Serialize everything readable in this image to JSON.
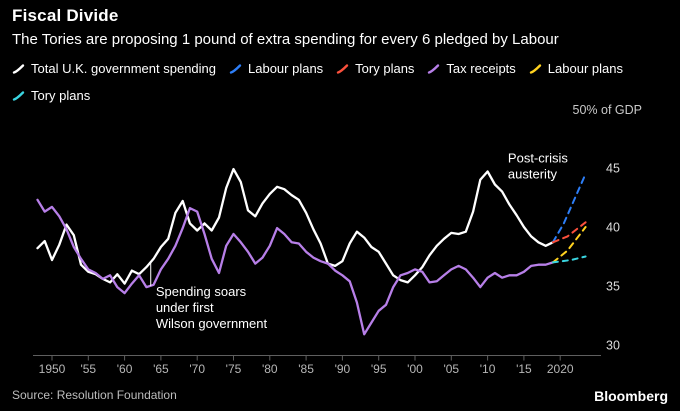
{
  "header": {
    "title": "Fiscal Divide",
    "subtitle": "The Tories are proposing 1 pound of extra spending for every 6 pledged by Labour"
  },
  "footer": {
    "source": "Source: Resolution Foundation",
    "brand": "Bloomberg"
  },
  "chart_data": {
    "type": "line",
    "title": "Fiscal Divide",
    "subtitle": "The Tories are proposing 1 pound of extra spending for every 6 pledged by Labour",
    "unit_label": "50% of GDP",
    "ylim": [
      29.15,
      50
    ],
    "xlim": [
      1947,
      2024.5
    ],
    "yticks": [
      30,
      35,
      40,
      45
    ],
    "grid": false,
    "legend_position": "top",
    "xticks": [
      {
        "x": 1950,
        "label": "1950"
      },
      {
        "x": 1955,
        "label": "'55"
      },
      {
        "x": 1960,
        "label": "'60"
      },
      {
        "x": 1965,
        "label": "'65"
      },
      {
        "x": 1970,
        "label": "'70"
      },
      {
        "x": 1975,
        "label": "'75"
      },
      {
        "x": 1980,
        "label": "'80"
      },
      {
        "x": 1985,
        "label": "'85"
      },
      {
        "x": 1990,
        "label": "'90"
      },
      {
        "x": 1995,
        "label": "'95"
      },
      {
        "x": 2000,
        "label": "'00"
      },
      {
        "x": 2005,
        "label": "'05"
      },
      {
        "x": 2010,
        "label": "'10"
      },
      {
        "x": 2015,
        "label": "'15"
      },
      {
        "x": 2020,
        "label": "2020"
      }
    ],
    "series": [
      {
        "name": "Total U.K. government spending",
        "color": "#ffffff",
        "dash": "",
        "points": [
          [
            1948,
            38.2
          ],
          [
            1949,
            38.8
          ],
          [
            1950,
            37.2
          ],
          [
            1951,
            38.5
          ],
          [
            1952,
            40.2
          ],
          [
            1953,
            39.3
          ],
          [
            1954,
            36.8
          ],
          [
            1955,
            36.2
          ],
          [
            1956,
            36.0
          ],
          [
            1957,
            35.6
          ],
          [
            1958,
            35.3
          ],
          [
            1959,
            36.0
          ],
          [
            1960,
            35.2
          ],
          [
            1961,
            36.3
          ],
          [
            1962,
            36.0
          ],
          [
            1963,
            36.6
          ],
          [
            1964,
            37.3
          ],
          [
            1965,
            38.3
          ],
          [
            1966,
            39.0
          ],
          [
            1967,
            41.2
          ],
          [
            1968,
            42.2
          ],
          [
            1969,
            40.3
          ],
          [
            1970,
            39.7
          ],
          [
            1971,
            40.3
          ],
          [
            1972,
            39.7
          ],
          [
            1973,
            40.8
          ],
          [
            1974,
            43.3
          ],
          [
            1975,
            44.9
          ],
          [
            1976,
            43.8
          ],
          [
            1977,
            41.4
          ],
          [
            1978,
            40.9
          ],
          [
            1979,
            42.0
          ],
          [
            1980,
            42.8
          ],
          [
            1981,
            43.4
          ],
          [
            1982,
            43.2
          ],
          [
            1983,
            42.7
          ],
          [
            1984,
            42.3
          ],
          [
            1985,
            41.2
          ],
          [
            1986,
            39.8
          ],
          [
            1987,
            38.6
          ],
          [
            1988,
            36.9
          ],
          [
            1989,
            36.7
          ],
          [
            1990,
            37.1
          ],
          [
            1991,
            38.6
          ],
          [
            1992,
            39.6
          ],
          [
            1993,
            39.1
          ],
          [
            1994,
            38.3
          ],
          [
            1995,
            37.9
          ],
          [
            1996,
            36.9
          ],
          [
            1997,
            35.9
          ],
          [
            1998,
            35.5
          ],
          [
            1999,
            35.3
          ],
          [
            2000,
            35.9
          ],
          [
            2001,
            36.6
          ],
          [
            2002,
            37.6
          ],
          [
            2003,
            38.4
          ],
          [
            2004,
            39.0
          ],
          [
            2005,
            39.5
          ],
          [
            2006,
            39.4
          ],
          [
            2007,
            39.6
          ],
          [
            2008,
            41.3
          ],
          [
            2009,
            44.0
          ],
          [
            2010,
            44.7
          ],
          [
            2011,
            43.6
          ],
          [
            2012,
            43.0
          ],
          [
            2013,
            41.9
          ],
          [
            2014,
            41.0
          ],
          [
            2015,
            40.0
          ],
          [
            2016,
            39.2
          ],
          [
            2017,
            38.7
          ],
          [
            2018,
            38.4
          ],
          [
            2019,
            38.7
          ]
        ]
      },
      {
        "name": "Labour plans",
        "color": "#2d7ef7",
        "dash": "6,5",
        "points": [
          [
            2019,
            38.7
          ],
          [
            2020.5,
            40.3
          ],
          [
            2023.5,
            44.5
          ]
        ]
      },
      {
        "name": "Tory plans",
        "color": "#fb503c",
        "dash": "6,5",
        "points": [
          [
            2019,
            38.7
          ],
          [
            2021,
            39.2
          ],
          [
            2023.5,
            40.4
          ]
        ]
      },
      {
        "name": "Tax receipts",
        "color": "#b77fe8",
        "dash": "",
        "points": [
          [
            1948,
            42.3
          ],
          [
            1949,
            41.3
          ],
          [
            1950,
            41.7
          ],
          [
            1951,
            40.9
          ],
          [
            1952,
            39.8
          ],
          [
            1953,
            38.3
          ],
          [
            1954,
            37.3
          ],
          [
            1955,
            36.4
          ],
          [
            1956,
            36.1
          ],
          [
            1957,
            35.6
          ],
          [
            1958,
            35.9
          ],
          [
            1959,
            34.9
          ],
          [
            1960,
            34.4
          ],
          [
            1961,
            35.2
          ],
          [
            1962,
            35.9
          ],
          [
            1963,
            34.9
          ],
          [
            1964,
            35.1
          ],
          [
            1965,
            36.4
          ],
          [
            1966,
            37.3
          ],
          [
            1967,
            38.4
          ],
          [
            1968,
            39.9
          ],
          [
            1969,
            41.6
          ],
          [
            1970,
            41.3
          ],
          [
            1971,
            39.4
          ],
          [
            1972,
            37.3
          ],
          [
            1973,
            36.1
          ],
          [
            1974,
            38.4
          ],
          [
            1975,
            39.4
          ],
          [
            1976,
            38.7
          ],
          [
            1977,
            37.9
          ],
          [
            1978,
            36.9
          ],
          [
            1979,
            37.4
          ],
          [
            1980,
            38.4
          ],
          [
            1981,
            39.9
          ],
          [
            1982,
            39.4
          ],
          [
            1983,
            38.7
          ],
          [
            1984,
            38.6
          ],
          [
            1985,
            37.9
          ],
          [
            1986,
            37.4
          ],
          [
            1987,
            37.1
          ],
          [
            1988,
            36.9
          ],
          [
            1989,
            36.3
          ],
          [
            1990,
            35.9
          ],
          [
            1991,
            35.4
          ],
          [
            1992,
            33.6
          ],
          [
            1993,
            30.9
          ],
          [
            1994,
            31.9
          ],
          [
            1995,
            32.9
          ],
          [
            1996,
            33.4
          ],
          [
            1997,
            34.9
          ],
          [
            1998,
            35.9
          ],
          [
            1999,
            36.1
          ],
          [
            2000,
            36.4
          ],
          [
            2001,
            36.2
          ],
          [
            2002,
            35.3
          ],
          [
            2003,
            35.4
          ],
          [
            2004,
            35.9
          ],
          [
            2005,
            36.4
          ],
          [
            2006,
            36.7
          ],
          [
            2007,
            36.4
          ],
          [
            2008,
            35.7
          ],
          [
            2009,
            34.9
          ],
          [
            2010,
            35.7
          ],
          [
            2011,
            36.1
          ],
          [
            2012,
            35.7
          ],
          [
            2013,
            35.9
          ],
          [
            2014,
            35.9
          ],
          [
            2015,
            36.2
          ],
          [
            2016,
            36.7
          ],
          [
            2017,
            36.8
          ],
          [
            2018,
            36.8
          ],
          [
            2019,
            37.0
          ]
        ]
      },
      {
        "name": "Labour plans",
        "color": "#ffd21f",
        "dash": "6,5",
        "points": [
          [
            2019,
            37.0
          ],
          [
            2021,
            38.0
          ],
          [
            2023.5,
            40.0
          ]
        ]
      },
      {
        "name": "Tory plans",
        "color": "#3ad5e0",
        "dash": "5,5",
        "points": [
          [
            2019,
            37.0
          ],
          [
            2021.5,
            37.2
          ],
          [
            2023.5,
            37.5
          ]
        ]
      }
    ],
    "annotations": [
      {
        "lines": [
          "Post-crisis",
          "austerity"
        ],
        "x": 2012.8,
        "y": 45.45,
        "align": "start"
      },
      {
        "lines": [
          "Spending soars",
          "under first",
          "Wilson government"
        ],
        "x": 1964.3,
        "y": 34.15,
        "align": "start",
        "pointer": {
          "x": 1963.6,
          "y1": 37.1,
          "y2": 35.0
        }
      }
    ]
  }
}
